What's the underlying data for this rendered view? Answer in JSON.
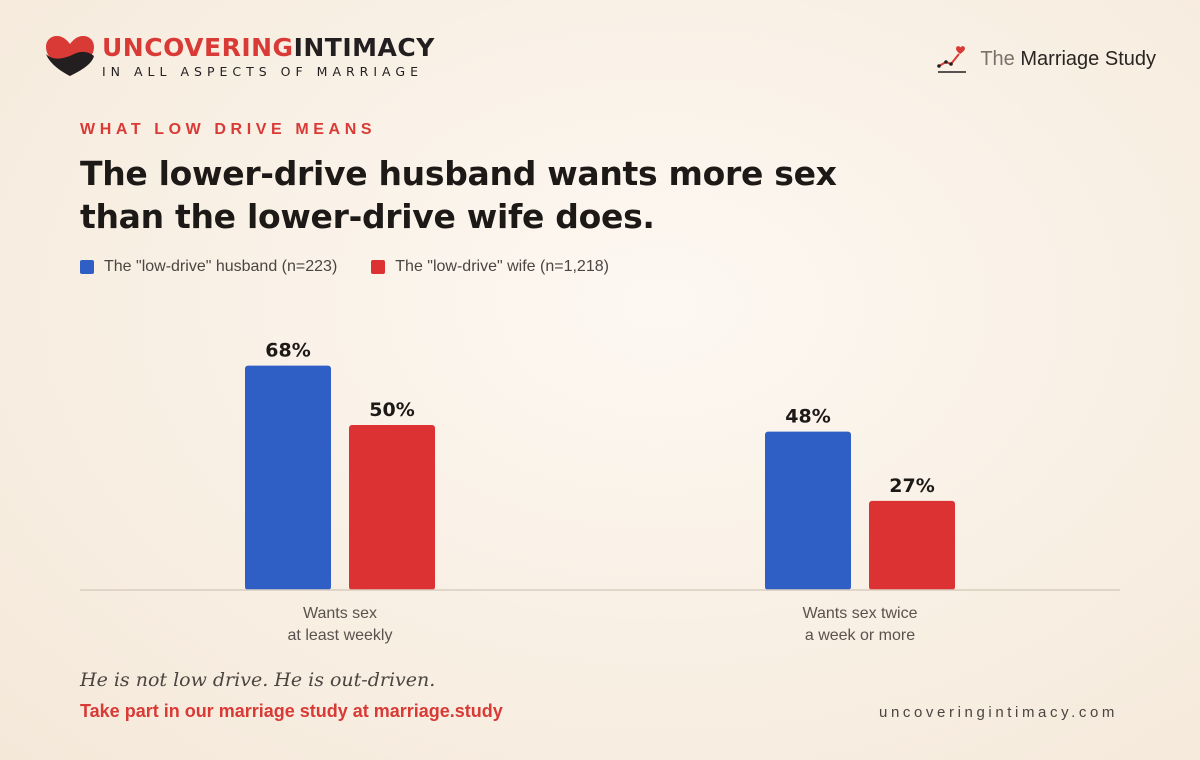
{
  "brand": {
    "logo_part1": "UNCOVERING",
    "logo_part2": "INTIMACY",
    "tagline": "IN ALL ASPECTS OF MARRIAGE",
    "study_prefix": "The",
    "study_name": "Marriage Study"
  },
  "kicker": "WHAT LOW DRIVE MEANS",
  "headline": "The lower-drive husband wants more sex than the lower-drive wife does.",
  "footer": {
    "quote": "He is not low drive. He is out-driven.",
    "cta": "Take part in our marriage study at marriage.study",
    "site": "uncoveringintimacy.com"
  },
  "colors": {
    "husband": "#2f5fc4",
    "wife": "#dd3233",
    "brand_red": "#d93a36"
  },
  "icons": {
    "logo": "heart-icon",
    "study": "trend-chart-icon"
  },
  "chart_data": {
    "type": "bar",
    "categories": [
      [
        "Wants sex",
        "at least weekly"
      ],
      [
        "Wants sex twice",
        "a week or more"
      ]
    ],
    "series": [
      {
        "name": "The \"low-drive\" husband (n=223)",
        "values": [
          68,
          48
        ]
      },
      {
        "name": "The \"low-drive\" wife (n=1,218)",
        "values": [
          50,
          27
        ]
      }
    ],
    "value_suffix": "%",
    "ylim": [
      0,
      100
    ],
    "grid": false,
    "legend_position": "top-left"
  }
}
